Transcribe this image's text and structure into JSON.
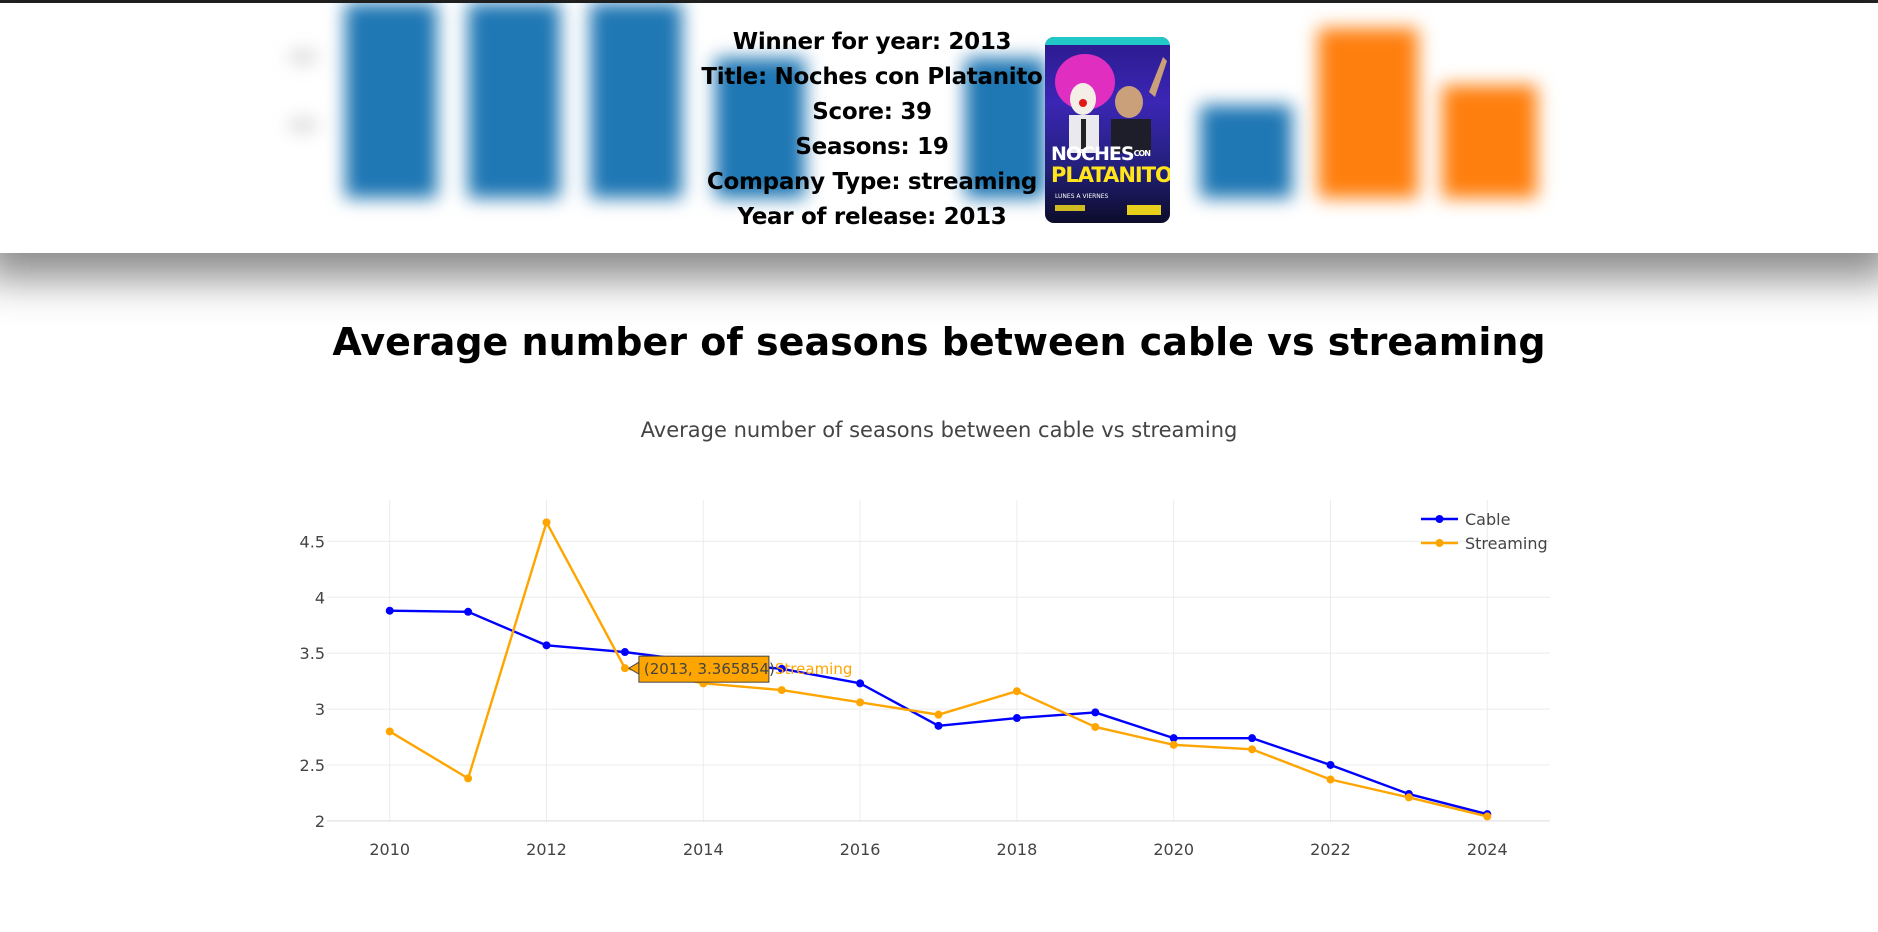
{
  "winner": {
    "lines": [
      "Winner for year: 2013",
      "Title: Noches con Platanito",
      "Score: 39",
      "Seasons: 19",
      "Company Type: streaming",
      "Year of release: 2013"
    ],
    "poster": {
      "title_top": "NOCHES",
      "title_con": "CON",
      "title_bottom": "PLATANITO",
      "subtitle": "LUNES A VIERNES"
    }
  },
  "page": {
    "heading": "Average number of seasons between cable vs streaming"
  },
  "chart_data": {
    "type": "line",
    "title": "Average number of seasons between cable vs streaming",
    "xlabel": "",
    "ylabel": "",
    "x": [
      2010,
      2011,
      2012,
      2013,
      2014,
      2015,
      2016,
      2017,
      2018,
      2019,
      2020,
      2021,
      2022,
      2023,
      2024
    ],
    "series": [
      {
        "name": "Cable",
        "color": "#0000ff",
        "values": [
          3.88,
          3.87,
          3.57,
          3.51,
          3.42,
          3.36,
          3.23,
          2.85,
          2.92,
          2.97,
          2.74,
          2.74,
          2.5,
          2.24,
          2.06
        ]
      },
      {
        "name": "Streaming",
        "color": "#ffa500",
        "values": [
          2.8,
          2.38,
          4.67,
          3.365854,
          3.23,
          3.17,
          3.06,
          2.95,
          3.16,
          2.84,
          2.68,
          2.64,
          2.37,
          2.21,
          2.04
        ]
      }
    ],
    "x_ticks": [
      "2010",
      "2012",
      "2014",
      "2016",
      "2018",
      "2020",
      "2022",
      "2024"
    ],
    "y_ticks": [
      "2",
      "2.5",
      "3",
      "3.5",
      "4",
      "4.5"
    ],
    "xlim": [
      2009.2,
      2024.8
    ],
    "ylim": [
      1.99,
      4.87
    ],
    "grid": true,
    "legend_position": "top-right",
    "hover": {
      "label": "(2013, 3.365854)",
      "series": "Streaming",
      "x": 2013,
      "y": 3.365854
    }
  },
  "colors": {
    "cable": "#0000ff",
    "streaming": "#ffa500",
    "bar_blue": "#1f77b4",
    "bar_orange": "#ff7f0e",
    "hover_bg": "#ffa500"
  }
}
